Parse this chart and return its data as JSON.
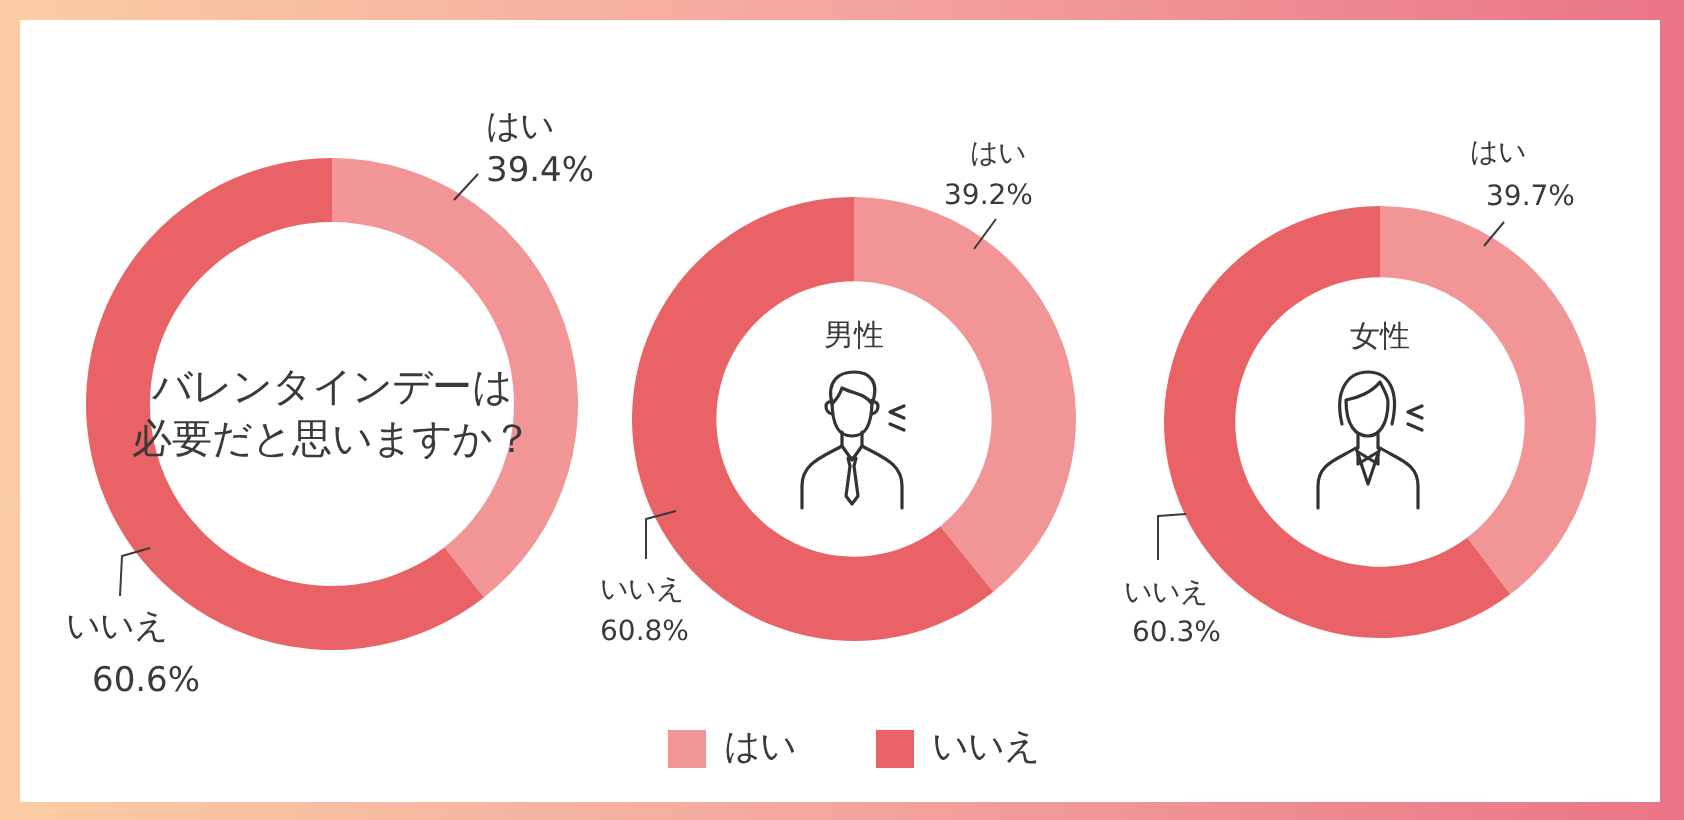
{
  "chart_data": [
    {
      "type": "donut",
      "title": "バレンタインデーは必要だと思いますか？",
      "categories": [
        "はい",
        "いいえ"
      ],
      "values": [
        39.4,
        60.6
      ],
      "colors": [
        "#f19597",
        "#e96265"
      ],
      "value_labels": [
        "39.4%",
        "60.6%"
      ]
    },
    {
      "type": "donut",
      "title": "男性",
      "categories": [
        "はい",
        "いいえ"
      ],
      "values": [
        39.2,
        60.8
      ],
      "colors": [
        "#f19597",
        "#e96265"
      ],
      "value_labels": [
        "39.2%",
        "60.8%"
      ],
      "legend": "bottom"
    },
    {
      "type": "donut",
      "title": "女性",
      "categories": [
        "はい",
        "いいえ"
      ],
      "values": [
        39.7,
        60.3
      ],
      "colors": [
        "#f19597",
        "#e96265"
      ],
      "value_labels": [
        "39.7%",
        "60.3%"
      ]
    }
  ]
}
